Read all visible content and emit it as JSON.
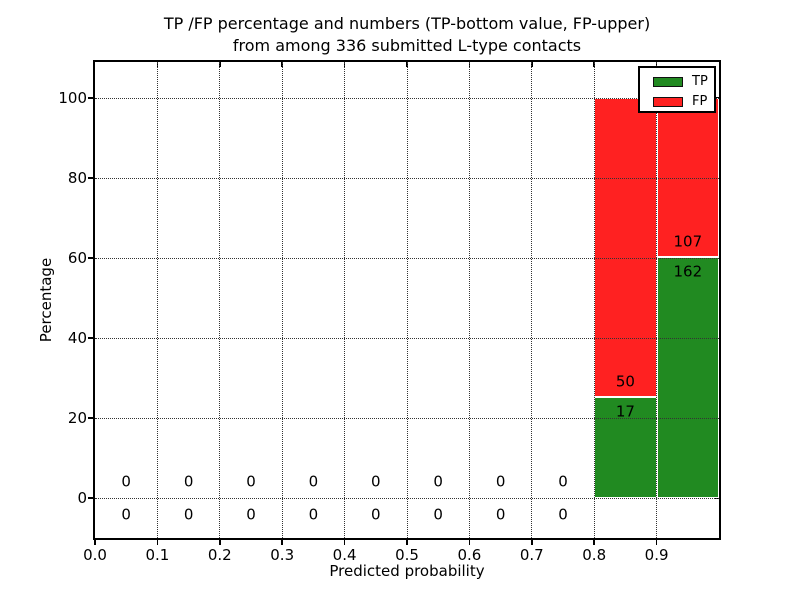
{
  "figure": {
    "title_line1": "TP /FP percentage and numbers (TP-bottom value, FP-upper)",
    "title_line2": "from among 336 submitted L-type contacts",
    "xlabel": "Predicted probability",
    "ylabel": "Percentage"
  },
  "chart_data": {
    "type": "bar",
    "stacked": true,
    "title": "TP /FP percentage and numbers (TP-bottom value, FP-upper) from among 336 submitted L-type contacts",
    "xlabel": "Predicted probability",
    "ylabel": "Percentage",
    "total_contacts": 336,
    "xlim": [
      0.0,
      1.0
    ],
    "ylim": [
      -10,
      109
    ],
    "grid": "dotted",
    "x_tick_labels": [
      "0.0",
      "0.1",
      "0.2",
      "0.3",
      "0.4",
      "0.5",
      "0.6",
      "0.7",
      "0.8",
      "0.9"
    ],
    "y_tick_labels": [
      "0",
      "20",
      "40",
      "60",
      "80",
      "100"
    ],
    "colors": {
      "tp": "#218a21",
      "fp": "#ff2121"
    },
    "legend": {
      "position": "upper right",
      "entries": [
        {
          "label": "TP",
          "color": "#218a21"
        },
        {
          "label": "FP",
          "color": "#ff2121"
        }
      ]
    },
    "bins": [
      {
        "range": [
          0.0,
          0.1
        ],
        "tp_count": 0,
        "fp_count": 0
      },
      {
        "range": [
          0.1,
          0.2
        ],
        "tp_count": 0,
        "fp_count": 0
      },
      {
        "range": [
          0.2,
          0.3
        ],
        "tp_count": 0,
        "fp_count": 0
      },
      {
        "range": [
          0.3,
          0.4
        ],
        "tp_count": 0,
        "fp_count": 0
      },
      {
        "range": [
          0.4,
          0.5
        ],
        "tp_count": 0,
        "fp_count": 0
      },
      {
        "range": [
          0.5,
          0.6
        ],
        "tp_count": 0,
        "fp_count": 0
      },
      {
        "range": [
          0.6,
          0.7
        ],
        "tp_count": 0,
        "fp_count": 0
      },
      {
        "range": [
          0.7,
          0.8
        ],
        "tp_count": 0,
        "fp_count": 0
      },
      {
        "range": [
          0.8,
          0.9
        ],
        "tp_count": 17,
        "fp_count": 50,
        "tp_pct": 25.4,
        "fp_pct": 74.6
      },
      {
        "range": [
          0.9,
          1.0
        ],
        "tp_count": 162,
        "fp_count": 107,
        "tp_pct": 60.2,
        "fp_pct": 39.8
      }
    ]
  }
}
